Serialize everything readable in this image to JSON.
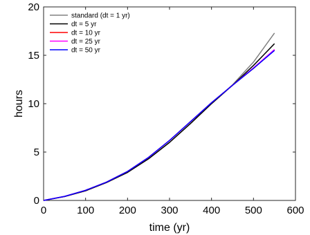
{
  "chart_data": {
    "type": "line",
    "title": "",
    "xlabel": "time (yr)",
    "ylabel": "hours",
    "xlim": [
      0,
      600
    ],
    "ylim": [
      0,
      20
    ],
    "xticks": [
      0,
      100,
      200,
      300,
      400,
      500,
      600
    ],
    "yticks": [
      0,
      5,
      10,
      15,
      20
    ],
    "grid": false,
    "legend_position": "top-left",
    "series": [
      {
        "name": "standard (dt = 1 yr)",
        "color": "#808080",
        "x": [
          0,
          50,
          100,
          150,
          200,
          250,
          300,
          350,
          400,
          450,
          500,
          550
        ],
        "y": [
          0,
          0.4,
          1.0,
          1.85,
          2.9,
          4.3,
          6.0,
          7.95,
          10.0,
          11.95,
          14.3,
          17.3
        ]
      },
      {
        "name": "dt = 5 yr",
        "color": "#000000",
        "x": [
          0,
          50,
          100,
          150,
          200,
          250,
          300,
          350,
          400,
          450,
          500,
          550
        ],
        "y": [
          0,
          0.4,
          1.0,
          1.85,
          2.9,
          4.3,
          6.0,
          7.95,
          10.0,
          11.9,
          13.95,
          16.2
        ]
      },
      {
        "name": "dt = 10 yr",
        "color": "#ff0000",
        "x": [
          0,
          50,
          100,
          150,
          200,
          250,
          300,
          350,
          400,
          450,
          500,
          550
        ],
        "y": [
          0,
          0.42,
          1.05,
          1.9,
          3.0,
          4.45,
          6.2,
          8.15,
          10.1,
          11.9,
          13.65,
          15.55
        ]
      },
      {
        "name": "dt = 25 yr",
        "color": "#ff00ff",
        "x": [
          0,
          50,
          100,
          150,
          200,
          250,
          300,
          350,
          400,
          450,
          500,
          550
        ],
        "y": [
          0,
          0.42,
          1.05,
          1.9,
          3.0,
          4.45,
          6.2,
          8.15,
          10.1,
          11.9,
          13.7,
          15.6
        ]
      },
      {
        "name": "dt = 50 yr",
        "color": "#0000ff",
        "x": [
          0,
          50,
          100,
          150,
          200,
          250,
          300,
          350,
          400,
          450,
          500,
          550
        ],
        "y": [
          0,
          0.42,
          1.05,
          1.9,
          3.0,
          4.45,
          6.2,
          8.15,
          10.1,
          11.9,
          13.65,
          15.5
        ]
      }
    ]
  }
}
